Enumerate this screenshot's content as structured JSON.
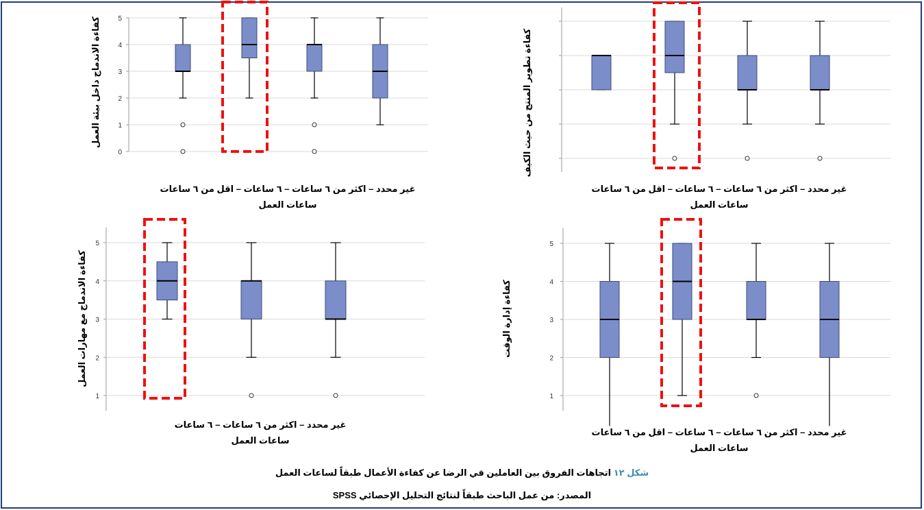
{
  "chart_data": [
    {
      "type": "boxplot",
      "ylabel": "كفاءة الاندماج داخل بيئة العمل",
      "xlabel": "ساعات العمل",
      "category_line": "غير محدد – اكثر من ٦ ساعات – ٦ ساعات – اقل من ٦ ساعات",
      "ylim": [
        0,
        5
      ],
      "yticks": [
        0,
        1,
        2,
        3,
        4,
        5
      ],
      "grid": true,
      "boxes": [
        {
          "min": 1,
          "q1": 2,
          "median": 3,
          "q3": 4,
          "max": 5,
          "outliers": []
        },
        {
          "min": 2,
          "q1": 3,
          "median": 4,
          "q3": 4,
          "max": 5,
          "outliers": [
            1,
            0
          ]
        },
        {
          "min": 2,
          "q1": 3.5,
          "median": 4,
          "q3": 5,
          "max": 5,
          "outliers": [],
          "highlighted": true
        },
        {
          "min": 2,
          "q1": 3,
          "median": 3,
          "q3": 4,
          "max": 5,
          "outliers": [
            1,
            0
          ]
        }
      ]
    },
    {
      "type": "boxplot",
      "ylabel": "كفاءة تطوير المنتج من حيث الكيف",
      "xlabel": "ساعات العمل",
      "category_line": "غير محدد – اكثر من ٦ ساعات – ٦ ساعات – اقل من ٦ ساعات",
      "ylim": [
        0.6,
        5.4
      ],
      "yticks": [
        1,
        2,
        3,
        4,
        5
      ],
      "show_tick_labels": false,
      "grid": true,
      "boxes": [
        {
          "min": 2,
          "q1": 3,
          "median": 3,
          "q3": 4,
          "max": 5,
          "outliers": [
            1
          ]
        },
        {
          "min": 2,
          "q1": 3,
          "median": 3,
          "q3": 4,
          "max": 5,
          "outliers": [
            1
          ]
        },
        {
          "min": 2,
          "q1": 3.5,
          "median": 4,
          "q3": 5,
          "max": 5,
          "outliers": [
            1
          ],
          "highlighted": true
        },
        {
          "min": 3,
          "q1": 3,
          "median": 4,
          "q3": 4,
          "max": 4,
          "outliers": []
        }
      ]
    },
    {
      "type": "boxplot",
      "ylabel": "كفاءة الاندماج مع مهارات العمل",
      "xlabel": "ساعات العمل",
      "category_line": "غير محدد – اكثر من ٦ ساعات – ٦ ساعات",
      "ylim": [
        0.6,
        5.4
      ],
      "yticks": [
        1,
        2,
        3,
        4,
        5
      ],
      "grid": true,
      "boxes": [
        {
          "min": 2,
          "q1": 3,
          "median": 3,
          "q3": 4,
          "max": 5,
          "outliers": [
            1
          ]
        },
        {
          "min": 2,
          "q1": 3,
          "median": 4,
          "q3": 4,
          "max": 5,
          "outliers": [
            1
          ]
        },
        {
          "min": 3,
          "q1": 3.5,
          "median": 4,
          "q3": 4.5,
          "max": 5,
          "outliers": [],
          "highlighted": true
        }
      ]
    },
    {
      "type": "boxplot",
      "ylabel": "كفاءة إدارة الوقت",
      "xlabel": "ساعات العمل",
      "category_line": "غير محدد – اكثر من ٦ ساعات – ٦ ساعات – اقل من ٦ ساعات",
      "ylim": [
        0.6,
        5.4
      ],
      "yticks": [
        1,
        2,
        3,
        4,
        5
      ],
      "grid": true,
      "boxes": [
        {
          "min": 0.2,
          "q1": 2,
          "median": 3,
          "q3": 4,
          "max": 5,
          "outliers": []
        },
        {
          "min": 2,
          "q1": 3,
          "median": 3,
          "q3": 4,
          "max": 5,
          "outliers": [
            1
          ]
        },
        {
          "min": 1,
          "q1": 3,
          "median": 4,
          "q3": 5,
          "max": 5,
          "outliers": [],
          "highlighted": true
        },
        {
          "min": 0.2,
          "q1": 2,
          "median": 3,
          "q3": 4,
          "max": 5,
          "outliers": []
        }
      ]
    }
  ],
  "caption": {
    "figure_label": "شكل ١٢",
    "text": "اتجاهات الفروق بين العاملين في الرضا عن كفاءة الأعمال طبقاً لساعات العمل"
  },
  "source": "المصدر: من عمل الباحث طبقاً لنتائج التحليل الإحصائي SPSS",
  "colors": {
    "box_fill": "#7b8ec9",
    "box_stroke": "#3d4a7a",
    "highlight": "#ee1111",
    "grid": "#d9d9d9",
    "frame": "#1f3d7a",
    "figure_label": "#3a8fb0"
  }
}
